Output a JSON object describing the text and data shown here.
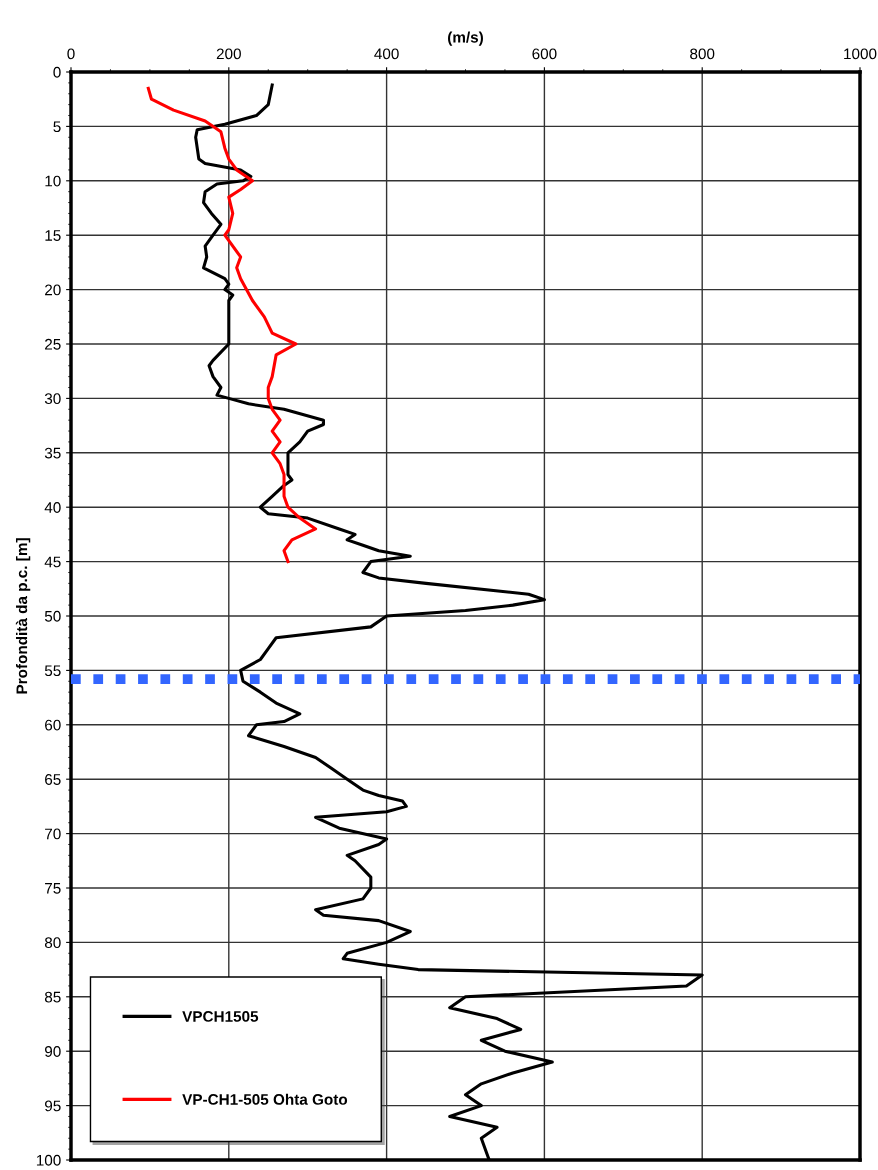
{
  "chart_data": {
    "type": "line",
    "xlabel": "(m/s)",
    "ylabel": "Profondità da p.c. [m]",
    "xlim": [
      0,
      1000
    ],
    "xticks": [
      0,
      200,
      400,
      600,
      800,
      1000
    ],
    "ylim": [
      100,
      0
    ],
    "yticks": [
      0,
      5,
      10,
      15,
      20,
      25,
      30,
      35,
      40,
      45,
      50,
      55,
      60,
      65,
      70,
      75,
      80,
      85,
      90,
      95,
      100
    ],
    "grid": true,
    "legend": "bottom left",
    "marker": "none",
    "line_style": "solid",
    "ref_lines": [
      {
        "axis": "y",
        "value": 55.8,
        "color": "#3366ff",
        "line_style": "dotted"
      }
    ],
    "series": [
      {
        "name": "VPCH1505",
        "color": "#000000",
        "x": [
          255,
          250,
          235,
          195,
          160,
          158,
          162,
          170,
          215,
          228,
          218,
          185,
          170,
          168,
          178,
          190,
          180,
          170,
          172,
          168,
          195,
          200,
          195,
          205,
          200,
          200,
          200,
          180,
          175,
          180,
          190,
          185,
          200,
          225,
          270,
          320,
          320,
          300,
          290,
          275,
          275,
          280,
          270,
          255,
          240,
          250,
          300,
          340,
          360,
          350,
          370,
          390,
          430,
          380,
          370,
          390,
          450,
          580,
          600,
          560,
          500,
          400,
          380,
          260,
          250,
          240,
          215,
          218,
          240,
          260,
          290,
          270,
          235,
          225,
          270,
          310,
          330,
          350,
          370,
          390,
          420,
          425,
          400,
          310,
          340,
          400,
          390,
          350,
          360,
          380,
          380,
          370,
          310,
          320,
          390,
          430,
          400,
          350,
          345,
          390,
          440,
          800,
          780,
          500,
          480,
          540,
          570,
          520,
          550,
          610,
          560,
          520,
          500,
          520,
          480,
          540,
          520,
          530
        ],
        "values": [
          1.2,
          3,
          4,
          4.8,
          5.3,
          6,
          8,
          8.4,
          9,
          9.6,
          10,
          10.3,
          11,
          12,
          13,
          14,
          15,
          16,
          17,
          18,
          19,
          19.5,
          20,
          20.5,
          21,
          23,
          25,
          26.5,
          27,
          28,
          29,
          29.7,
          30,
          30.5,
          31,
          32,
          32.4,
          33,
          34,
          35,
          37,
          37.5,
          38,
          39,
          40,
          40.6,
          41,
          42,
          42.5,
          43,
          43.5,
          44,
          44.5,
          45,
          46,
          46.5,
          47,
          48,
          48.5,
          49,
          49.5,
          50,
          51,
          52,
          53,
          54,
          55,
          56,
          57,
          58,
          59,
          59.7,
          60,
          61,
          62,
          63,
          64,
          65,
          66,
          66.5,
          67,
          67.5,
          68,
          68.5,
          69.5,
          70.5,
          71,
          72,
          72.5,
          74,
          75,
          76,
          77,
          77.5,
          78,
          79,
          80,
          81,
          81.5,
          82,
          82.5,
          83,
          84,
          85,
          86,
          87,
          88,
          89,
          90,
          91,
          92,
          93,
          94,
          95,
          96,
          97,
          98,
          100
        ]
      },
      {
        "name": "VP-CH1-505 Ohta Goto",
        "color": "#ff0000",
        "x": [
          98,
          102,
          130,
          170,
          190,
          195,
          200,
          210,
          230,
          215,
          200,
          205,
          200,
          195,
          215,
          210,
          215,
          230,
          245,
          255,
          285,
          260,
          255,
          250,
          250,
          255,
          265,
          255,
          265,
          255,
          265,
          270,
          270,
          270,
          275,
          290,
          310,
          280,
          270,
          275
        ],
        "values": [
          1.5,
          2.5,
          3.5,
          4.5,
          5.5,
          7,
          8,
          9,
          10,
          10.8,
          11.5,
          13,
          14.5,
          15,
          17,
          18,
          19,
          21,
          22.5,
          24,
          25,
          26,
          28,
          29,
          30,
          31,
          32,
          33,
          34,
          35,
          36,
          37,
          38,
          39,
          40,
          41,
          42,
          43,
          44,
          45
        ]
      }
    ]
  }
}
